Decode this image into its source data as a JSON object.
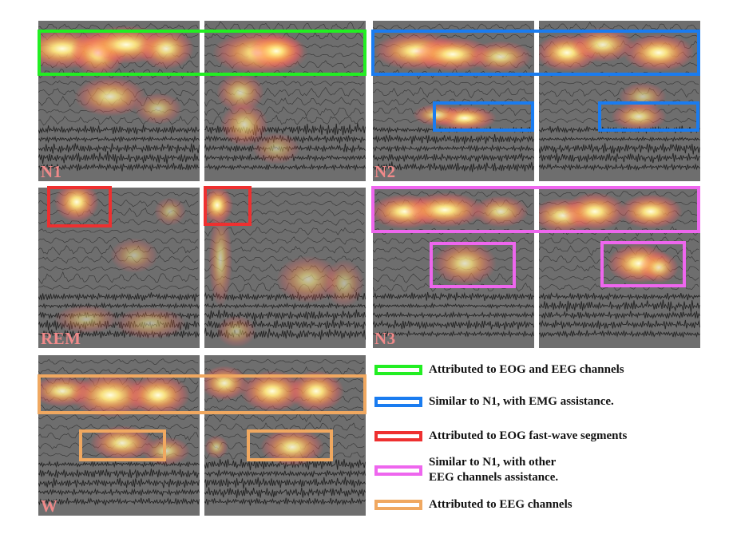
{
  "colors": {
    "eog_eeg": "#22ee22",
    "emg": "#1a7cf0",
    "eog_fast": "#ee3030",
    "other_eeg": "#ee66ee",
    "eeg": "#f0a860"
  },
  "stages": {
    "n1": "N1",
    "n2": "N2",
    "rem": "REM",
    "n3": "N3",
    "w": "W"
  },
  "legend": {
    "eog_eeg": "Attributed to EOG and EEG channels",
    "emg": "Similar to N1, with EMG assistance.",
    "eog_fast": "Attributed to EOG fast-wave segments",
    "other_eeg_1": "Similar to N1, with other",
    "other_eeg_2": "EEG channels assistance.",
    "eeg": "Attributed to EEG channels"
  }
}
